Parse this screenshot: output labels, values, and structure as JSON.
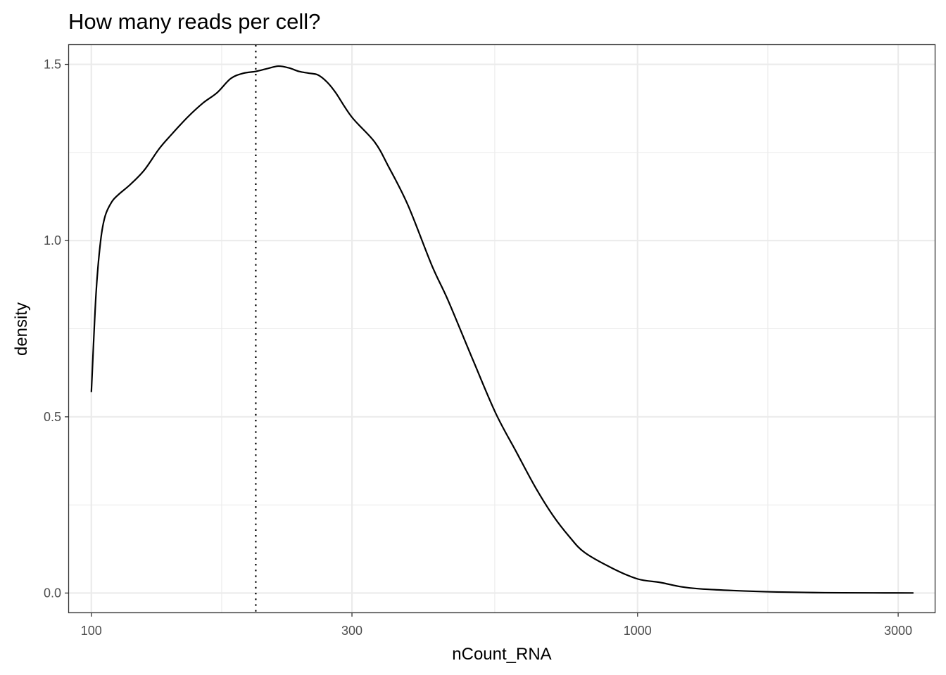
{
  "chart_data": {
    "type": "line",
    "title": "How many reads per cell?",
    "xlabel": "nCount_RNA",
    "ylabel": "density",
    "x_scale": "log10",
    "xlim": [
      91,
      3500
    ],
    "ylim": [
      -0.055,
      1.555
    ],
    "x_ticks": [
      100,
      300,
      1000,
      3000
    ],
    "x_tick_labels": [
      "100",
      "300",
      "1000",
      "3000"
    ],
    "y_ticks": [
      0.0,
      0.5,
      1.0,
      1.5
    ],
    "y_tick_labels": [
      "0.0",
      "0.5",
      "1.0",
      "1.5"
    ],
    "grid": true,
    "vline": {
      "x": 200,
      "linetype": "dotted"
    },
    "series": [
      {
        "x": [
          100,
          102,
          104,
          106,
          109,
          112,
          118,
          125,
          133,
          140,
          150,
          160,
          170,
          180,
          190,
          200,
          210,
          220,
          230,
          240,
          250,
          260,
          270,
          280,
          300,
          330,
          350,
          380,
          420,
          450,
          500,
          550,
          600,
          650,
          700,
          750,
          800,
          900,
          1000,
          1100,
          1200,
          1300,
          1500,
          1800,
          2200,
          2700,
          3200
        ],
        "y": [
          0.57,
          0.85,
          1.0,
          1.07,
          1.11,
          1.13,
          1.16,
          1.2,
          1.26,
          1.3,
          1.35,
          1.39,
          1.42,
          1.46,
          1.475,
          1.48,
          1.488,
          1.495,
          1.49,
          1.48,
          1.475,
          1.47,
          1.45,
          1.42,
          1.35,
          1.28,
          1.21,
          1.1,
          0.93,
          0.83,
          0.66,
          0.51,
          0.4,
          0.3,
          0.22,
          0.16,
          0.115,
          0.07,
          0.04,
          0.03,
          0.018,
          0.012,
          0.007,
          0.003,
          0.001,
          0.0005,
          0.0002
        ]
      }
    ],
    "colors": {
      "line": "#000000",
      "grid": "#ebebeb",
      "panel_border": "#333333"
    }
  }
}
